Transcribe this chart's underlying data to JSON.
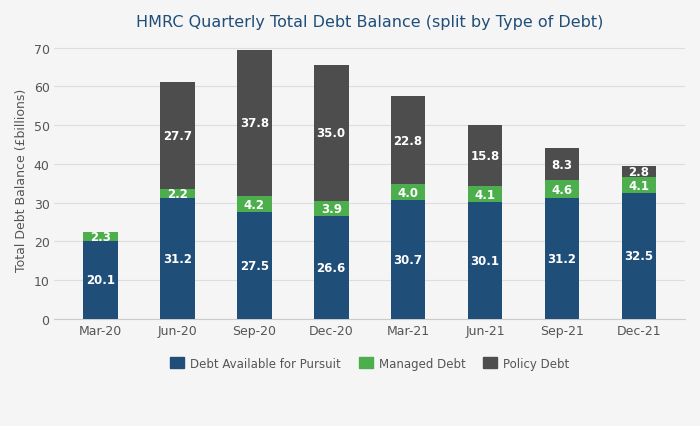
{
  "title": "HMRC Quarterly Total Debt Balance (split by Type of Debt)",
  "categories": [
    "Mar-20",
    "Jun-20",
    "Sep-20",
    "Dec-20",
    "Mar-21",
    "Jun-21",
    "Sep-21",
    "Dec-21"
  ],
  "debt_available": [
    20.1,
    31.2,
    27.5,
    26.6,
    30.7,
    30.1,
    31.2,
    32.5
  ],
  "managed_debt": [
    2.3,
    2.2,
    4.2,
    3.9,
    4.0,
    4.1,
    4.6,
    4.1
  ],
  "policy_debt": [
    0.0,
    27.7,
    37.8,
    35.0,
    22.8,
    15.8,
    8.3,
    2.8
  ],
  "color_debt_available": "#1f4e79",
  "color_managed_debt": "#4cae4c",
  "color_policy_debt": "#4d4d4d",
  "ylabel": "Total Debt Balance (£billions)",
  "ylim": [
    0,
    72
  ],
  "yticks": [
    0,
    10,
    20,
    30,
    40,
    50,
    60,
    70
  ],
  "legend_labels": [
    "Debt Available for Pursuit",
    "Managed Debt",
    "Policy Debt"
  ],
  "background_color": "#f5f5f5",
  "plot_bg_color": "#f5f5f5",
  "title_color": "#1f4e79",
  "title_fontsize": 11.5,
  "label_fontsize": 8.5,
  "axis_label_fontsize": 9,
  "tick_fontsize": 9,
  "bar_width": 0.45,
  "legend_fontsize": 8.5
}
